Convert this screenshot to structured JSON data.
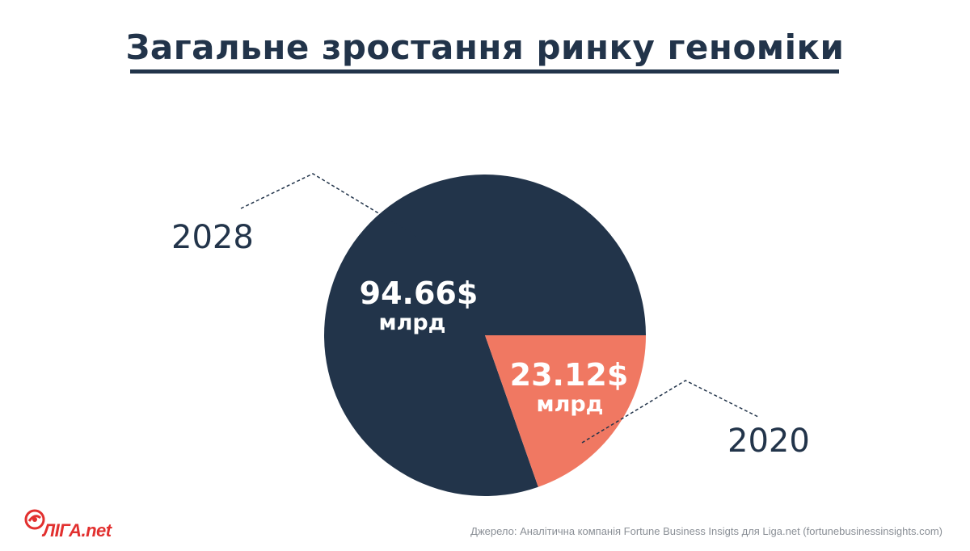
{
  "title": "Загальне зростання ринку геноміки",
  "chart_data": {
    "type": "pie",
    "slices": [
      {
        "year": "2028",
        "value": 94.66,
        "value_label": "94.66$",
        "unit_label": "млрд",
        "color": "#22344a"
      },
      {
        "year": "2020",
        "value": 23.12,
        "value_label": "23.12$",
        "unit_label": "млрд",
        "color": "#f07862"
      }
    ]
  },
  "source": "Джерело: Аналітична компанія Fortune Business Insigts для Liga.net (fortunebusinessinsights.com)",
  "logo": {
    "main": "ЛІГА",
    "suffix": ".net",
    "color": "#e2302f"
  },
  "colors": {
    "text": "#22344a",
    "background": "#ffffff",
    "leader": "#22344a"
  }
}
